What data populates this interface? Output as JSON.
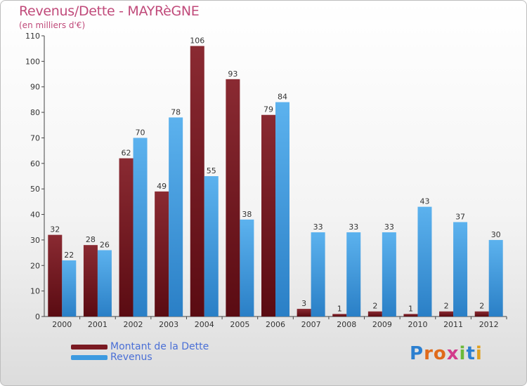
{
  "header": {
    "title": "Revenus/Dette - MAYRèGNE",
    "subtitle": "(en milliers d'€)"
  },
  "chart_data": {
    "type": "bar",
    "title": "Revenus/Dette - MAYRèGNE",
    "subtitle": "(en milliers d'€)",
    "xlabel": "",
    "ylabel": "",
    "ylim": [
      0,
      110
    ],
    "yticks": [
      0,
      10,
      20,
      30,
      40,
      50,
      60,
      70,
      80,
      90,
      100,
      110
    ],
    "grid": false,
    "legend_position": "bottom-left",
    "categories": [
      "2000",
      "2001",
      "2002",
      "2003",
      "2004",
      "2005",
      "2006",
      "2007",
      "2008",
      "2009",
      "2010",
      "2011",
      "2012"
    ],
    "series": [
      {
        "name": "Montant de la Dette",
        "color": "#7a1a22",
        "values": [
          32,
          28,
          62,
          49,
          106,
          93,
          79,
          3,
          1,
          2,
          1,
          2,
          2
        ]
      },
      {
        "name": "Revenus",
        "color": "#3d9ae0",
        "values": [
          22,
          26,
          70,
          78,
          55,
          38,
          84,
          33,
          33,
          33,
          43,
          37,
          30
        ]
      }
    ]
  },
  "legend": {
    "items": [
      {
        "label": "Montant de la Dette",
        "color": "#7a1a22"
      },
      {
        "label": "Revenus",
        "color": "#3d9ae0"
      }
    ]
  },
  "logo": {
    "letters": [
      "P",
      "r",
      "o",
      "x",
      "i",
      "t",
      "i"
    ],
    "colors": [
      "#2b7fd0",
      "#e06a1a",
      "#e06a1a",
      "#d23a8c",
      "#6bb93a",
      "#2b7fd0",
      "#e0a020"
    ]
  }
}
